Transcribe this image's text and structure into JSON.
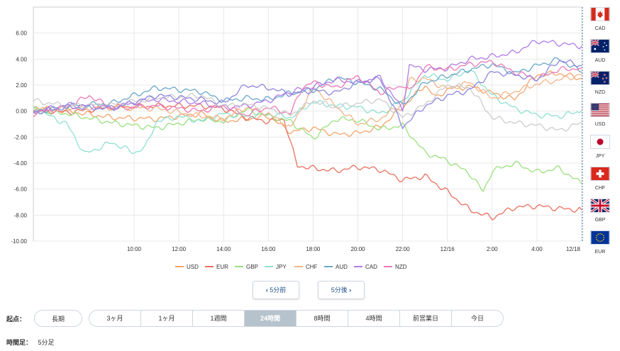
{
  "chart_data": {
    "type": "line",
    "ylim": [
      -10,
      8
    ],
    "yticks": [
      "6.00",
      "4.00",
      "2.00",
      "0.00",
      "-2.00",
      "-4.00",
      "-6.00",
      "-8.00",
      "-10.00"
    ],
    "yvalues": [
      6,
      4,
      2,
      0,
      -2,
      -4,
      -6,
      -8,
      -10
    ],
    "xticks": [
      "10:00",
      "12:00",
      "14:00",
      "16:00",
      "18:00",
      "20:00",
      "22:00",
      "12/16",
      "2:00",
      "4:00",
      "12/18"
    ],
    "xtick_times": [
      4,
      6,
      8,
      10,
      12,
      14,
      16,
      18,
      20,
      22,
      24
    ],
    "time_range": [
      -0.5,
      24
    ],
    "grid": true,
    "legend_position": "bottom",
    "series": [
      {
        "name": "USD",
        "color": "#f2a46b",
        "values": [
          [
            -0.5,
            0.3
          ],
          [
            1,
            0.0
          ],
          [
            3,
            -0.5
          ],
          [
            5,
            -0.6
          ],
          [
            7,
            -0.2
          ],
          [
            8,
            -0.8
          ],
          [
            9,
            -0.6
          ],
          [
            10,
            -0.4
          ],
          [
            11,
            -1.6
          ],
          [
            12,
            -1.3
          ],
          [
            13,
            -1.8
          ],
          [
            14,
            -1.7
          ],
          [
            15,
            -1.2
          ],
          [
            16,
            0.3
          ],
          [
            17,
            2.0
          ],
          [
            17.5,
            1.0
          ],
          [
            18,
            1.7
          ],
          [
            19,
            1.9
          ],
          [
            20,
            1.4
          ],
          [
            21,
            0.9
          ],
          [
            22,
            2.8
          ],
          [
            23,
            2.9
          ],
          [
            24,
            2.5
          ]
        ]
      },
      {
        "name": "EUR",
        "color": "#e8705f",
        "values": [
          [
            -0.5,
            0.1
          ],
          [
            1,
            -0.1
          ],
          [
            3,
            0.3
          ],
          [
            5,
            0.4
          ],
          [
            7,
            0.4
          ],
          [
            8,
            0.2
          ],
          [
            9,
            -0.5
          ],
          [
            10,
            -0.8
          ],
          [
            10.7,
            -0.6
          ],
          [
            11,
            -2.5
          ],
          [
            11.3,
            -4.2
          ],
          [
            12,
            -4.4
          ],
          [
            13,
            -4.6
          ],
          [
            14,
            -4.3
          ],
          [
            15,
            -4.5
          ],
          [
            16,
            -5.3
          ],
          [
            17,
            -5.0
          ],
          [
            18,
            -6.2
          ],
          [
            19,
            -7.6
          ],
          [
            20,
            -8.2
          ],
          [
            21,
            -7.4
          ],
          [
            22,
            -7.3
          ],
          [
            23,
            -7.5
          ],
          [
            24,
            -7.6
          ]
        ]
      },
      {
        "name": "GBP",
        "color": "#9be07f",
        "values": [
          [
            -0.5,
            0.1
          ],
          [
            1,
            -0.2
          ],
          [
            3,
            -0.9
          ],
          [
            5,
            -1.3
          ],
          [
            7,
            -0.6
          ],
          [
            8,
            -0.8
          ],
          [
            9,
            0.1
          ],
          [
            10,
            -0.4
          ],
          [
            11,
            -0.8
          ],
          [
            12,
            -2.1
          ],
          [
            13,
            -0.6
          ],
          [
            14,
            -0.7
          ],
          [
            15,
            -1.4
          ],
          [
            16,
            -1.1
          ],
          [
            17,
            -3.2
          ],
          [
            18,
            -3.8
          ],
          [
            19,
            -4.8
          ],
          [
            19.6,
            -6.2
          ],
          [
            20,
            -4.6
          ],
          [
            21,
            -4.0
          ],
          [
            22,
            -4.7
          ],
          [
            23,
            -4.4
          ],
          [
            24,
            -5.6
          ]
        ]
      },
      {
        "name": "JPY",
        "color": "#8fe0d0",
        "values": [
          [
            -0.5,
            0.2
          ],
          [
            1,
            -1.0
          ],
          [
            1.8,
            -3.3
          ],
          [
            3,
            -2.4
          ],
          [
            4,
            -3.2
          ],
          [
            4.5,
            -2.8
          ],
          [
            5,
            -0.8
          ],
          [
            6,
            -0.4
          ],
          [
            7,
            -0.8
          ],
          [
            8,
            -0.2
          ],
          [
            9,
            -0.4
          ],
          [
            10,
            -0.2
          ],
          [
            11,
            -0.5
          ],
          [
            12,
            0.7
          ],
          [
            13,
            0.4
          ],
          [
            14,
            0.3
          ],
          [
            15,
            -0.2
          ],
          [
            16,
            0.8
          ],
          [
            17,
            2.8
          ],
          [
            18,
            2.4
          ],
          [
            19,
            3.2
          ],
          [
            20,
            1.2
          ],
          [
            21,
            0.2
          ],
          [
            22,
            -0.3
          ],
          [
            23,
            -0.4
          ],
          [
            24,
            0.0
          ]
        ]
      },
      {
        "name": "CHF",
        "color": "#f3b58a",
        "values": [
          [
            -0.5,
            0.0
          ],
          [
            1,
            0.2
          ],
          [
            3,
            0.3
          ],
          [
            5,
            0.2
          ],
          [
            7,
            -0.4
          ],
          [
            8,
            -0.6
          ],
          [
            9,
            0.3
          ],
          [
            10,
            -0.2
          ],
          [
            11,
            -1.3
          ],
          [
            12,
            1.8
          ],
          [
            13,
            0.4
          ],
          [
            14,
            -1.0
          ],
          [
            15,
            -0.6
          ],
          [
            16,
            0.6
          ],
          [
            16.3,
            2.4
          ],
          [
            17,
            2.5
          ],
          [
            18,
            1.7
          ],
          [
            19,
            2.2
          ],
          [
            20,
            1.0
          ],
          [
            21,
            1.5
          ],
          [
            22,
            2.1
          ],
          [
            23,
            2.4
          ],
          [
            24,
            2.8
          ]
        ]
      },
      {
        "name": "AUD",
        "color": "#6aa7c7",
        "values": [
          [
            -0.5,
            -0.1
          ],
          [
            1,
            0.4
          ],
          [
            3,
            0.6
          ],
          [
            5,
            1.8
          ],
          [
            7,
            1.5
          ],
          [
            8,
            0.8
          ],
          [
            9,
            1.0
          ],
          [
            10,
            0.9
          ],
          [
            11,
            1.4
          ],
          [
            12,
            1.6
          ],
          [
            13,
            2.6
          ],
          [
            14,
            2.2
          ],
          [
            15,
            1.7
          ],
          [
            16,
            0.4
          ],
          [
            17,
            2.2
          ],
          [
            18,
            2.7
          ],
          [
            19,
            3.2
          ],
          [
            20,
            3.6
          ],
          [
            21,
            2.9
          ],
          [
            22,
            3.5
          ],
          [
            23,
            4.0
          ],
          [
            24,
            3.0
          ]
        ]
      },
      {
        "name": "CAD",
        "color": "#b07be8",
        "values": [
          [
            -0.5,
            -0.1
          ],
          [
            1,
            0.5
          ],
          [
            3,
            0.3
          ],
          [
            5,
            0.9
          ],
          [
            7,
            0.6
          ],
          [
            8,
            0.3
          ],
          [
            9,
            0.4
          ],
          [
            10,
            0.8
          ],
          [
            11,
            1.5
          ],
          [
            12,
            1.9
          ],
          [
            13,
            2.4
          ],
          [
            14,
            2.2
          ],
          [
            15,
            2.6
          ],
          [
            16,
            0.1
          ],
          [
            16.3,
            3.5
          ],
          [
            17,
            3.2
          ],
          [
            18,
            3.3
          ],
          [
            19,
            4.0
          ],
          [
            20,
            4.2
          ],
          [
            21,
            4.5
          ],
          [
            22,
            5.4
          ],
          [
            23,
            5.2
          ],
          [
            24,
            5.0
          ]
        ]
      },
      {
        "name": "NZD",
        "color": "#ec7ab5",
        "values": [
          [
            -0.5,
            -0.2
          ],
          [
            1,
            0.3
          ],
          [
            2,
            1.2
          ],
          [
            3,
            0.2
          ],
          [
            5,
            0.4
          ],
          [
            7,
            0.0
          ],
          [
            8,
            0.4
          ],
          [
            9,
            -0.3
          ],
          [
            10,
            0.3
          ],
          [
            11,
            -0.2
          ],
          [
            11.5,
            1.8
          ],
          [
            12,
            2.2
          ],
          [
            13,
            1.8
          ],
          [
            14,
            2.7
          ],
          [
            15,
            1.4
          ],
          [
            16,
            2.0
          ],
          [
            16.3,
            1.5
          ],
          [
            17,
            3.4
          ],
          [
            18,
            3.2
          ],
          [
            19,
            3.6
          ],
          [
            20,
            3.8
          ],
          [
            21,
            3.0
          ],
          [
            22,
            2.5
          ],
          [
            23,
            3.2
          ],
          [
            24,
            3.3
          ]
        ]
      },
      {
        "name": "",
        "color": "#cccccc",
        "values": [
          [
            -0.5,
            0.8
          ],
          [
            1,
            0.4
          ],
          [
            3,
            0.5
          ],
          [
            5,
            1.0
          ],
          [
            7,
            1.2
          ],
          [
            8,
            0.4
          ],
          [
            9,
            0.5
          ],
          [
            10,
            0.2
          ],
          [
            11,
            -0.3
          ],
          [
            12,
            0.8
          ],
          [
            13,
            0.3
          ],
          [
            14,
            0.6
          ],
          [
            15,
            0.9
          ],
          [
            16,
            -0.5
          ],
          [
            17,
            0.5
          ],
          [
            18,
            2.0
          ],
          [
            19,
            1.8
          ],
          [
            20,
            -0.5
          ],
          [
            21,
            -0.9
          ],
          [
            22,
            -1.1
          ],
          [
            23,
            -1.5
          ],
          [
            24,
            -0.9
          ]
        ]
      },
      {
        "name": "",
        "color": "#8f86e0",
        "values": [
          [
            -0.5,
            -0.1
          ],
          [
            1,
            0.3
          ],
          [
            3,
            0.2
          ],
          [
            5,
            1.2
          ],
          [
            7,
            0.9
          ],
          [
            8,
            0.6
          ],
          [
            9,
            2.0
          ],
          [
            10,
            1.8
          ],
          [
            11,
            1.3
          ],
          [
            12,
            1.6
          ],
          [
            13,
            1.4
          ],
          [
            14,
            2.2
          ],
          [
            15,
            2.5
          ],
          [
            16,
            -1.2
          ],
          [
            17,
            0.4
          ],
          [
            18,
            1.2
          ],
          [
            19,
            1.6
          ],
          [
            20,
            3.0
          ],
          [
            21,
            2.8
          ],
          [
            22,
            2.4
          ],
          [
            23,
            3.9
          ],
          [
            24,
            3.5
          ]
        ]
      }
    ]
  },
  "legend": [
    {
      "name": "USD",
      "color": "#f2a46b"
    },
    {
      "name": "EUR",
      "color": "#e8705f"
    },
    {
      "name": "GBP",
      "color": "#9be07f"
    },
    {
      "name": "JPY",
      "color": "#8fe0d0"
    },
    {
      "name": "CHF",
      "color": "#f3b58a"
    },
    {
      "name": "AUD",
      "color": "#6aa7c7"
    },
    {
      "name": "CAD",
      "color": "#b07be8"
    },
    {
      "name": "NZD",
      "color": "#ec7ab5"
    }
  ],
  "flags": [
    {
      "code": "CAD",
      "icon": "canada-flag"
    },
    {
      "code": "AUD",
      "icon": "australia-flag"
    },
    {
      "code": "NZD",
      "icon": "new-zealand-flag"
    },
    {
      "code": "USD",
      "icon": "usa-flag"
    },
    {
      "code": "JPY",
      "icon": "japan-flag"
    },
    {
      "code": "CHF",
      "icon": "switzerland-flag"
    },
    {
      "code": "GBP",
      "icon": "uk-flag"
    },
    {
      "code": "EUR",
      "icon": "eu-flag"
    }
  ],
  "nav": {
    "prev_label": "5分前",
    "next_label": "5分後"
  },
  "start": {
    "label": "起点：",
    "long_label": "長期",
    "options": [
      "3ヶ月",
      "1ヶ月",
      "1週間",
      "24時間",
      "8時間",
      "4時間",
      "前営業日",
      "今日"
    ],
    "active": "24時間"
  },
  "timeframe": {
    "label": "時間足：",
    "value": "5分足"
  },
  "colors": {
    "grid": "#e8e8e8",
    "axis": "#cccccc",
    "active_tab": "#b7c3cc",
    "nav_text": "#1f4e8a",
    "divider": "#3a6fb0"
  }
}
